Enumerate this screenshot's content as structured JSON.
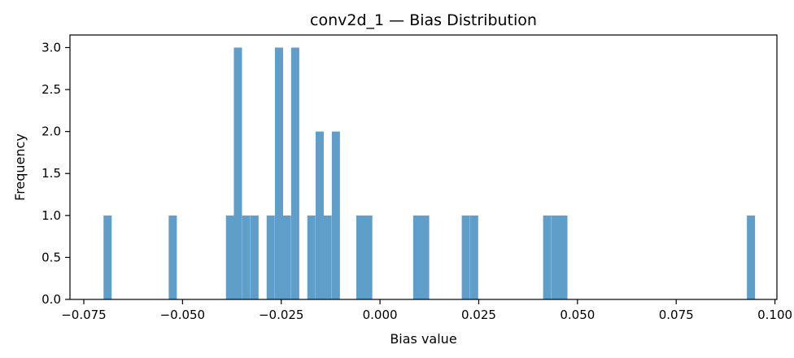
{
  "chart_data": {
    "type": "histogram",
    "title": "conv2d_1 — Bias Distribution",
    "xlabel": "Bias value",
    "ylabel": "Frequency",
    "xlim": [
      -0.0785,
      0.1005
    ],
    "ylim": [
      0,
      3.15
    ],
    "x_ticks": [
      -0.075,
      -0.05,
      -0.025,
      0.0,
      0.025,
      0.05,
      0.075,
      0.1
    ],
    "x_tick_labels": [
      "−0.075",
      "−0.050",
      "−0.025",
      "0.000",
      "0.025",
      "0.050",
      "0.075",
      "0.100"
    ],
    "y_ticks": [
      0,
      0.5,
      1,
      1.5,
      2,
      2.5,
      3
    ],
    "y_tick_labels": [
      "0.0",
      "0.5",
      "1.0",
      "1.5",
      "2.0",
      "2.5",
      "3.0"
    ],
    "bar_color": "#5f9ec9",
    "bin_width": 0.00206,
    "bins": [
      {
        "x": -0.07,
        "count": 1
      },
      {
        "x": -0.0535,
        "count": 1
      },
      {
        "x": -0.039,
        "count": 1
      },
      {
        "x": -0.037,
        "count": 3
      },
      {
        "x": -0.0349,
        "count": 1
      },
      {
        "x": -0.0328,
        "count": 1
      },
      {
        "x": -0.0287,
        "count": 1
      },
      {
        "x": -0.0266,
        "count": 3
      },
      {
        "x": -0.0246,
        "count": 1
      },
      {
        "x": -0.0225,
        "count": 3
      },
      {
        "x": -0.0184,
        "count": 1
      },
      {
        "x": -0.0163,
        "count": 2
      },
      {
        "x": -0.0143,
        "count": 1
      },
      {
        "x": -0.0122,
        "count": 2
      },
      {
        "x": -0.006,
        "count": 1
      },
      {
        "x": -0.004,
        "count": 1
      },
      {
        "x": 0.0084,
        "count": 1
      },
      {
        "x": 0.0104,
        "count": 1
      },
      {
        "x": 0.0207,
        "count": 1
      },
      {
        "x": 0.0228,
        "count": 1
      },
      {
        "x": 0.0413,
        "count": 1
      },
      {
        "x": 0.0434,
        "count": 1
      },
      {
        "x": 0.0454,
        "count": 1
      },
      {
        "x": 0.0929,
        "count": 1
      }
    ]
  }
}
